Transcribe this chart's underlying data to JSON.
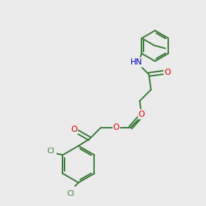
{
  "bg_color": "#ebebeb",
  "bond_color": "#3a7a3a",
  "bond_lw": 1.5,
  "atom_colors": {
    "O": "#dd0000",
    "N": "#0000bb",
    "Cl": "#3a7a3a",
    "H": "#555555"
  },
  "font_size_atom": 8.5,
  "font_size_cl": 8.0,
  "figsize": [
    3.0,
    3.0
  ],
  "dpi": 100
}
